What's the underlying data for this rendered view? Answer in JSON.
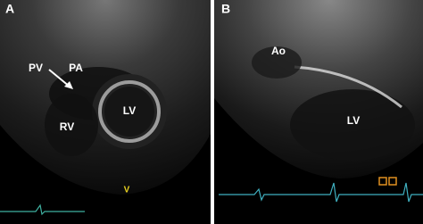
{
  "panels": [
    {
      "label": "A",
      "annotations": [
        "PV",
        "PA",
        "RV",
        "LV"
      ],
      "marker": "V"
    },
    {
      "label": "B",
      "annotations": [
        "Ao",
        "LV"
      ]
    }
  ]
}
